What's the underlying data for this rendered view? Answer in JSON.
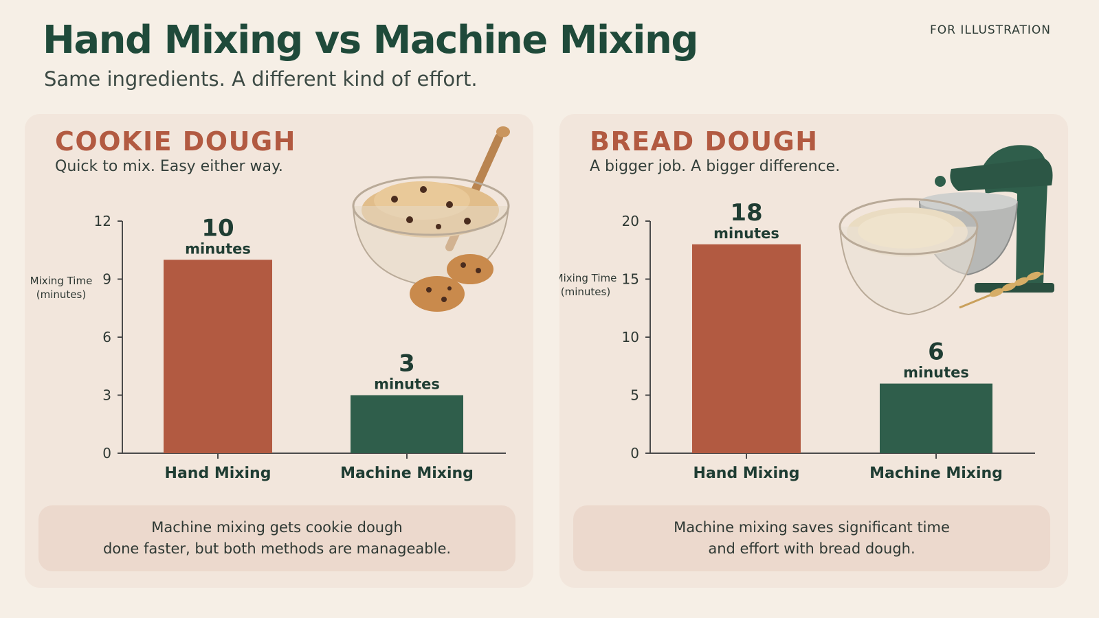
{
  "header": {
    "title": "Hand Mixing vs Machine Mixing",
    "subtitle": "Same ingredients. A different kind of effort.",
    "tag": "FOR ILLUSTRATION"
  },
  "panels": [
    {
      "heading": "COOKIE DOUGH",
      "subheading": "Quick to mix. Easy either way.",
      "note_lines": [
        "Machine mixing gets cookie dough",
        "done faster, but both methods are manageable."
      ],
      "illustration": "cookie-dough-bowl-illustration"
    },
    {
      "heading": "BREAD DOUGH",
      "subheading": "A bigger job. A bigger difference.",
      "note_lines": [
        "Machine mixing saves significant time",
        "and effort with bread dough."
      ],
      "illustration": "stand-mixer-bread-dough-illustration"
    }
  ],
  "colors": {
    "hand": "#b25a41",
    "machine": "#2f5e4b",
    "axis": "#4a4a4a",
    "heading": "#b25a41",
    "dark_text": "#1f3d33"
  },
  "chart_data": [
    {
      "type": "bar",
      "title": "COOKIE DOUGH",
      "categories": [
        "Hand Mixing",
        "Machine Mixing"
      ],
      "values": [
        10,
        3
      ],
      "value_labels": [
        "10",
        "3"
      ],
      "unit_label": "minutes",
      "ylabel": "Mixing Time (minutes)",
      "ylim": [
        0,
        12
      ],
      "yticks": [
        0,
        3,
        6,
        9,
        12
      ],
      "grid": false
    },
    {
      "type": "bar",
      "title": "BREAD DOUGH",
      "categories": [
        "Hand Mixing",
        "Machine Mixing"
      ],
      "values": [
        18,
        6
      ],
      "value_labels": [
        "18",
        "6"
      ],
      "unit_label": "minutes",
      "ylabel": "Mixing Time (minutes)",
      "ylim": [
        0,
        20
      ],
      "yticks": [
        0,
        5,
        10,
        15,
        20
      ],
      "grid": false
    }
  ]
}
